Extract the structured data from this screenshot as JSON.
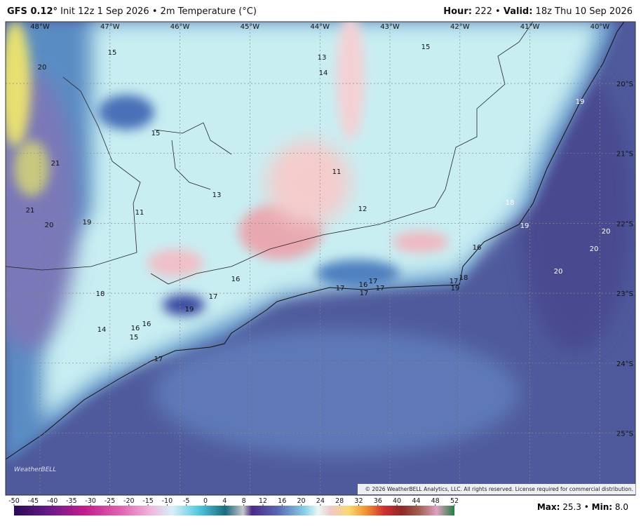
{
  "header": {
    "model": "GFS 0.12°",
    "run": "Init 12z 1 Sep 2026",
    "separator": "•",
    "field": "2m Temperature (°C)",
    "hour_label": "Hour:",
    "hour": "222",
    "valid_label": "Valid:",
    "valid": "18z Thu 10 Sep 2026"
  },
  "map": {
    "longitude_labels": [
      "48°W",
      "47°W",
      "46°W",
      "45°W",
      "44°W",
      "43°W",
      "42°W",
      "41°W",
      "40°W"
    ],
    "latitude_labels": [
      "20°S",
      "21°S",
      "22°S",
      "23°S",
      "24°S",
      "25°S"
    ],
    "point_values": [
      15,
      20,
      13,
      14,
      15,
      19,
      15,
      21,
      11,
      13,
      18,
      12,
      21,
      11,
      20,
      19,
      19,
      20,
      20,
      16,
      20,
      16,
      17,
      18,
      19,
      17,
      16,
      17,
      17,
      17,
      17,
      18,
      19,
      14,
      16,
      16,
      15,
      17
    ],
    "logo": "WeatherBELL",
    "copyright": "© 2026 WeatherBELL Analytics, LLC. All rights reserved. License required for commercial distribution."
  },
  "colorbar": {
    "ticks": [
      -50,
      -45,
      -40,
      -35,
      -30,
      -25,
      -20,
      -15,
      -10,
      -5,
      0,
      4,
      8,
      12,
      16,
      20,
      24,
      28,
      32,
      36,
      40,
      44,
      48,
      52
    ]
  },
  "footer": {
    "max_label": "Max:",
    "max": "25.3",
    "min_label": "Min:",
    "min": "8.0"
  }
}
